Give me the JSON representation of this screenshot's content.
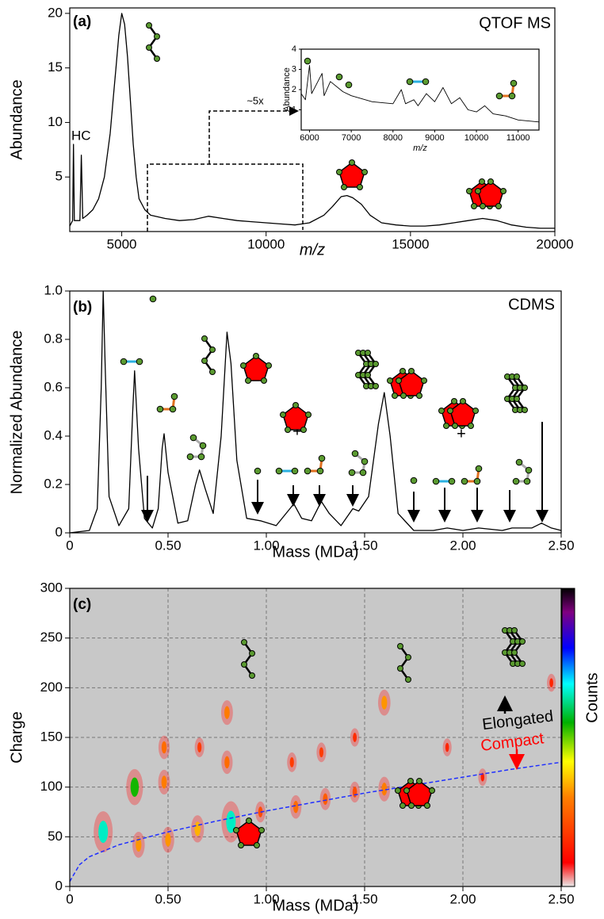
{
  "chart_data": [
    {
      "type": "line",
      "label": "(a)",
      "title": "QTOF MS",
      "annotations": [
        "HC",
        "~5x"
      ],
      "xlabel": "m/z",
      "ylabel": "Abundance",
      "xlim": [
        3200,
        20000
      ],
      "xticks": [
        5000,
        10000,
        15000,
        20000
      ],
      "ylim": [
        0,
        20.5
      ],
      "yticks": [
        5,
        10,
        15,
        20
      ],
      "series": [
        {
          "color": "#000000",
          "x": [
            3200,
            3300,
            3330,
            3360,
            3550,
            3600,
            3650,
            3800,
            4000,
            4200,
            4400,
            4600,
            4700,
            4800,
            4900,
            5000,
            5100,
            5200,
            5300,
            5400,
            5500,
            5600,
            5800,
            6000,
            6500,
            7000,
            7500,
            8000,
            8500,
            9000,
            9500,
            10000,
            10500,
            11000,
            11500,
            12000,
            12300,
            12600,
            12800,
            13000,
            13300,
            13600,
            14000,
            14500,
            15000,
            15500,
            16000,
            16500,
            17000,
            17500,
            18000,
            18500,
            19000,
            19500,
            20000
          ],
          "values": [
            0.5,
            1,
            8,
            1,
            1,
            7,
            1.2,
            1.5,
            2,
            3,
            5,
            9,
            12,
            15,
            18,
            20,
            19,
            16,
            12,
            8,
            5,
            3,
            2,
            1.5,
            1.2,
            1,
            1.1,
            1.4,
            1.2,
            1.0,
            0.9,
            0.8,
            0.7,
            0.6,
            0.8,
            1.5,
            2.3,
            3.2,
            3.3,
            3.1,
            2.5,
            1.5,
            0.8,
            0.6,
            0.5,
            0.5,
            0.6,
            0.8,
            1.0,
            1.2,
            1.0,
            0.6,
            0.4,
            0.3,
            0.3
          ]
        }
      ]
    },
    {
      "type": "line",
      "xlabel": "m/z",
      "ylabel": "Abundance",
      "xlim": [
        5800,
        11500
      ],
      "xticks": [
        6000,
        7000,
        8000,
        9000,
        10000,
        11000
      ],
      "ylim": [
        0,
        4
      ],
      "yticks": [
        1,
        2,
        3,
        4
      ],
      "series": [
        {
          "color": "#000000",
          "x": [
            5800,
            5900,
            6000,
            6050,
            6300,
            6350,
            6500,
            6800,
            7000,
            7500,
            8000,
            8200,
            8300,
            8500,
            8600,
            8800,
            9000,
            9200,
            9400,
            9600,
            9800,
            10000,
            10200,
            10400,
            10700,
            11000,
            11500
          ],
          "values": [
            1.8,
            1.5,
            3.2,
            1.8,
            2.8,
            1.7,
            2.4,
            1.9,
            1.7,
            1.4,
            1.3,
            2.0,
            1.3,
            1.5,
            1.2,
            1.8,
            1.4,
            2.1,
            1.3,
            1.6,
            1.0,
            0.9,
            1.2,
            0.8,
            0.7,
            0.5,
            0.4
          ]
        }
      ]
    },
    {
      "type": "line",
      "label": "(b)",
      "title": "CDMS",
      "annotations": [
        "+",
        "+"
      ],
      "xlabel": "Mass (MDa)",
      "ylabel": "Normalized Abundance",
      "xlim": [
        0,
        2.5
      ],
      "xticks": [
        0,
        {
          "value": 0.5,
          "label": "0.50"
        },
        {
          "value": 1,
          "label": "1.00"
        },
        {
          "value": 1.5,
          "label": "1.50"
        },
        {
          "value": 2,
          "label": "2.00"
        },
        {
          "value": 2.5,
          "label": "2.50"
        }
      ],
      "ylim": [
        0,
        1
      ],
      "yticks": [
        0,
        0.2,
        0.4,
        0.6,
        0.8,
        {
          "value": 1,
          "label": "1.0"
        }
      ],
      "series": [
        {
          "color": "#000000",
          "x": [
            0,
            0.1,
            0.14,
            0.16,
            0.17,
            0.18,
            0.2,
            0.25,
            0.3,
            0.32,
            0.33,
            0.35,
            0.38,
            0.4,
            0.42,
            0.45,
            0.47,
            0.48,
            0.5,
            0.55,
            0.6,
            0.64,
            0.66,
            0.69,
            0.73,
            0.77,
            0.8,
            0.82,
            0.85,
            0.9,
            0.97,
            1.05,
            1.12,
            1.14,
            1.18,
            1.23,
            1.28,
            1.32,
            1.38,
            1.44,
            1.47,
            1.52,
            1.57,
            1.6,
            1.63,
            1.67,
            1.75,
            1.85,
            1.92,
            2.0,
            2.08,
            2.2,
            2.25,
            2.35,
            2.4,
            2.45,
            2.5
          ],
          "values": [
            0,
            0.01,
            0.1,
            0.6,
            1.0,
            0.7,
            0.15,
            0.03,
            0.1,
            0.5,
            0.67,
            0.35,
            0.06,
            0.04,
            0.02,
            0.1,
            0.35,
            0.41,
            0.25,
            0.04,
            0.05,
            0.2,
            0.26,
            0.18,
            0.08,
            0.4,
            0.83,
            0.7,
            0.3,
            0.06,
            0.05,
            0.03,
            0.1,
            0.12,
            0.06,
            0.05,
            0.13,
            0.08,
            0.03,
            0.1,
            0.09,
            0.15,
            0.45,
            0.58,
            0.4,
            0.08,
            0.01,
            0.01,
            0.02,
            0.01,
            0.02,
            0.01,
            0.02,
            0.02,
            0.04,
            0.02,
            0.01
          ]
        }
      ]
    },
    {
      "type": "heatmap",
      "label": "(c)",
      "annotations": [
        "Elongated",
        "Compact"
      ],
      "colorbar_label": "Counts",
      "xlabel": "Mass (MDa)",
      "ylabel": "Charge",
      "grid": true,
      "background": "#c8c8c8",
      "xlim": [
        0,
        2.5
      ],
      "xticks": [
        0,
        {
          "value": 0.5,
          "label": "0.50"
        },
        {
          "value": 1,
          "label": "1.00"
        },
        {
          "value": 1.5,
          "label": "1.50"
        },
        {
          "value": 2,
          "label": "2.00"
        },
        {
          "value": 2.5,
          "label": "2.50"
        }
      ],
      "ylim": [
        0,
        300
      ],
      "yticks": [
        0,
        50,
        100,
        150,
        200,
        250,
        300
      ],
      "clusters": {
        "mass": [
          0.17,
          0.33,
          0.35,
          0.48,
          0.48,
          0.5,
          0.65,
          0.66,
          0.8,
          0.8,
          0.82,
          0.97,
          1.15,
          1.13,
          1.3,
          1.28,
          1.45,
          1.45,
          1.6,
          1.6,
          1.92,
          2.45,
          2.1
        ],
        "charge": [
          55,
          100,
          42,
          140,
          105,
          47,
          58,
          140,
          175,
          125,
          65,
          75,
          80,
          125,
          88,
          135,
          95,
          150,
          185,
          98,
          140,
          205,
          110
        ],
        "counts": [
          1.0,
          0.8,
          0.4,
          0.3,
          0.35,
          0.4,
          0.45,
          0.15,
          0.35,
          0.3,
          1.0,
          0.2,
          0.3,
          0.15,
          0.25,
          0.15,
          0.2,
          0.1,
          0.4,
          0.35,
          0.08,
          0.08,
          0.06
        ]
      },
      "series": [
        {
          "color": "#1f2fff",
          "x": [
            0,
            0.05,
            0.1,
            0.25,
            0.5,
            0.75,
            1.0,
            1.25,
            1.5,
            1.75,
            2.0,
            2.25,
            2.5
          ],
          "values": [
            5,
            22,
            30,
            42,
            55,
            66,
            76,
            85,
            94,
            102,
            110,
            118,
            125
          ]
        }
      ]
    }
  ]
}
